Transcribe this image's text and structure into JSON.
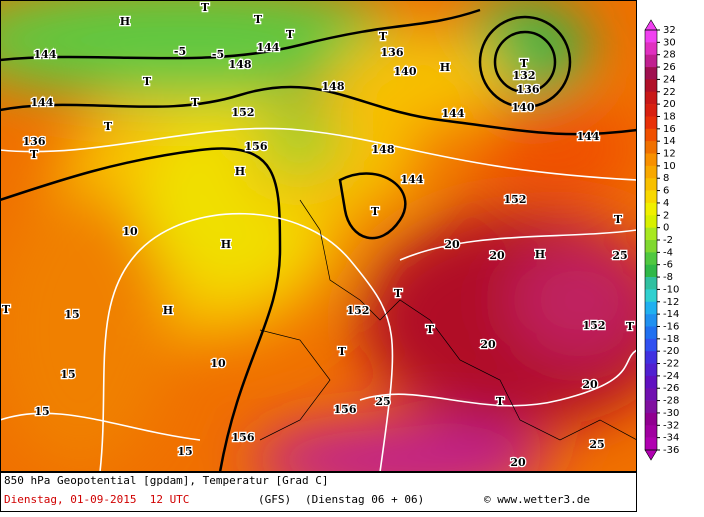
{
  "map_labels": [
    "H",
    "T",
    "T",
    "T",
    "144",
    "-5",
    "-5",
    "148",
    "T",
    "T",
    "144",
    "144",
    "T",
    "136",
    "T",
    "152",
    "156",
    "H",
    "H",
    "H",
    "10",
    "10",
    "15",
    "15",
    "15",
    "15",
    "T",
    "T",
    "136",
    "H",
    "T",
    "132",
    "136",
    "140",
    "144",
    "144",
    "140",
    "148",
    "148",
    "144",
    "T",
    "152",
    "20",
    "20",
    "H",
    "25",
    "T",
    "T",
    "152",
    "T",
    "T",
    "20",
    "T",
    "152",
    "25",
    "T",
    "20",
    "25",
    "20",
    "156",
    "156"
  ],
  "scale": {
    "ticks": [
      32,
      30,
      28,
      26,
      24,
      22,
      20,
      18,
      16,
      14,
      12,
      10,
      8,
      6,
      4,
      2,
      0,
      -2,
      -4,
      -6,
      -8,
      -10,
      -12,
      -14,
      -16,
      -18,
      -20,
      -22,
      -24,
      -26,
      -28,
      -30,
      -32,
      -34,
      -36
    ],
    "colors": [
      "#f040f0",
      "#e030c0",
      "#c02090",
      "#a01050",
      "#b01028",
      "#c81818",
      "#d82010",
      "#e83008",
      "#f05000",
      "#f07000",
      "#f89000",
      "#f8a800",
      "#f8c000",
      "#f8d800",
      "#f0f000",
      "#d8f000",
      "#a8e820",
      "#80d830",
      "#50c840",
      "#30b848",
      "#30c0a0",
      "#30d0d0",
      "#20b0f0",
      "#2090f0",
      "#2070f0",
      "#3050f0",
      "#4030e0",
      "#5020d0",
      "#6010c0",
      "#7010b0",
      "#8010a0",
      "#900090",
      "#a000a0",
      "#b000b0"
    ]
  },
  "footer": {
    "title": "850 hPa Geopotential [gpdam], Temperatur [Grad C]",
    "date": "Dienstag, 01-09-2015  12 UTC",
    "model": "(GFS)",
    "run": "(Dienstag 06 + 06)",
    "credit": "© www.wetter3.de"
  }
}
